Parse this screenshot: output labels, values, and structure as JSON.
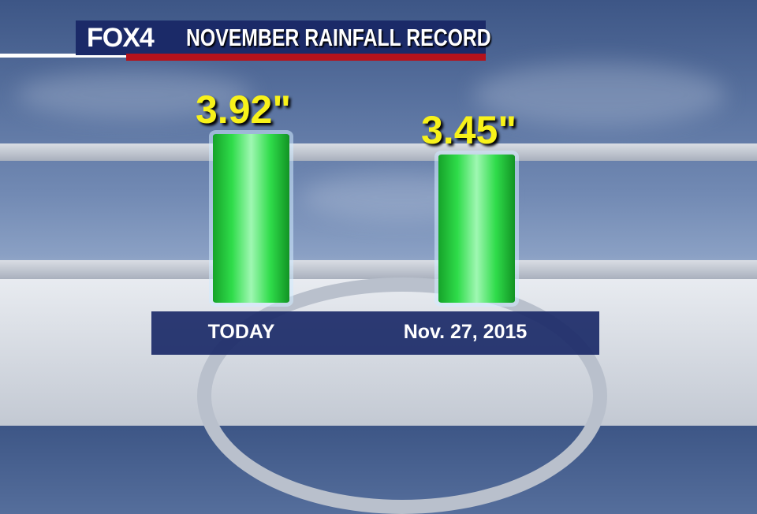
{
  "header": {
    "logo": "FOX4",
    "title": "NOVEMBER RAINFALL RECORD"
  },
  "chart_data": {
    "type": "bar",
    "title": "NOVEMBER RAINFALL RECORD",
    "categories": [
      "TODAY",
      "Nov. 27, 2015"
    ],
    "values": [
      3.92,
      3.45
    ],
    "data_labels": [
      "3.92\"",
      "3.45\""
    ],
    "unit": "inches",
    "bar_color": "#2fdc4a",
    "label_color": "#f8f21a",
    "ylim": [
      0,
      3.92
    ],
    "grid": false
  }
}
